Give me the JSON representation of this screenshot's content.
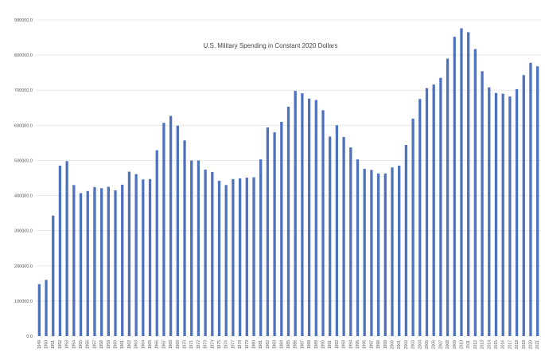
{
  "chart_data": {
    "type": "bar",
    "title": "U.S. Military Spending in Constant 2020 Dollars",
    "xlabel": "",
    "ylabel": "",
    "ylim": [
      0,
      900000
    ],
    "yticks": [
      "0.0",
      "100000.0",
      "200000.0",
      "300000.0",
      "400000.0",
      "500000.0",
      "600000.0",
      "700000.0",
      "800000.0",
      "900000.0"
    ],
    "grid": true,
    "bar_color": "#4f72be",
    "grid_color": "#d9d9d9",
    "categories": [
      "1949",
      "1950",
      "1951",
      "1952",
      "1953",
      "1954",
      "1955",
      "1956",
      "1957",
      "1958",
      "1959",
      "1960",
      "1961",
      "1962",
      "1963",
      "1964",
      "1965",
      "1966",
      "1967",
      "1968",
      "1969",
      "1970",
      "1971",
      "1972",
      "1973",
      "1974",
      "1975",
      "1976",
      "1977",
      "1978",
      "1979",
      "1980",
      "1981",
      "1982",
      "1983",
      "1984",
      "1985",
      "1986",
      "1987",
      "1988",
      "1989",
      "1990",
      "1991",
      "1992",
      "1993",
      "1994",
      "1995",
      "1996",
      "1997",
      "1998",
      "1999",
      "2000",
      "2001",
      "2002",
      "2003",
      "2004",
      "2005",
      "2006",
      "2007",
      "2008",
      "2009",
      "2010",
      "2011",
      "2012",
      "2013",
      "2014",
      "2015",
      "2016",
      "2017",
      "2018",
      "2019",
      "2020",
      "2021"
    ],
    "values": [
      148000,
      160000,
      343000,
      485000,
      498000,
      430000,
      407000,
      413000,
      424000,
      421000,
      425000,
      415000,
      431000,
      468000,
      461000,
      446000,
      447000,
      529000,
      607000,
      627000,
      599000,
      557000,
      500000,
      500000,
      474000,
      467000,
      442000,
      430000,
      447000,
      449000,
      451000,
      452000,
      503000,
      594000,
      580000,
      610000,
      653000,
      698000,
      691000,
      676000,
      672000,
      643000,
      568000,
      600000,
      567000,
      537000,
      503000,
      476000,
      473000,
      463000,
      463000,
      480000,
      485000,
      544000,
      619000,
      675000,
      706000,
      716000,
      735000,
      790000,
      852000,
      876000,
      865000,
      817000,
      754000,
      708000,
      692000,
      690000,
      682000,
      703000,
      743000,
      778000,
      768000
    ]
  }
}
